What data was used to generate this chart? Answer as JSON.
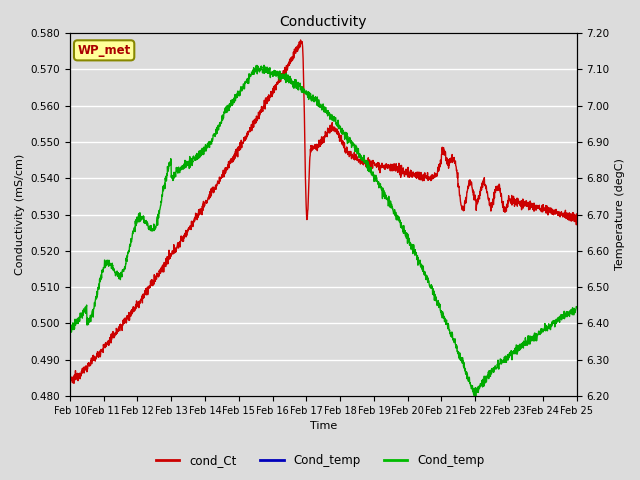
{
  "title": "Conductivity",
  "xlabel": "Time",
  "ylabel_left": "Conductivity (mS/cm)",
  "ylabel_right": "Temperature (degC)",
  "left_ylim": [
    0.48,
    0.58
  ],
  "right_ylim": [
    6.2,
    7.2
  ],
  "left_yticks": [
    0.48,
    0.49,
    0.5,
    0.51,
    0.52,
    0.53,
    0.54,
    0.55,
    0.56,
    0.57,
    0.58
  ],
  "right_yticks": [
    6.2,
    6.3,
    6.4,
    6.5,
    6.6,
    6.7,
    6.8,
    6.9,
    7.0,
    7.1,
    7.2
  ],
  "xtick_labels": [
    "Feb 10",
    "Feb 11",
    "Feb 12",
    "Feb 13",
    "Feb 14",
    "Feb 15",
    "Feb 16",
    "Feb 17",
    "Feb 18",
    "Feb 19",
    "Feb 20",
    "Feb 21",
    "Feb 22",
    "Feb 23",
    "Feb 24",
    "Feb 25"
  ],
  "background_color": "#dcdcdc",
  "grid_color": "#ffffff",
  "legend_labels": [
    "cond_Ct",
    "Cond_temp",
    "Cond_temp"
  ],
  "legend_colors": [
    "#cc0000",
    "#0000bb",
    "#00bb00"
  ],
  "wp_met_box_color": "#ffff99",
  "wp_met_text_color": "#aa0000",
  "wp_met_border_color": "#888800",
  "red_line_color": "#cc0000",
  "green_line_color": "#00aa00",
  "blue_line_color": "#0000bb"
}
